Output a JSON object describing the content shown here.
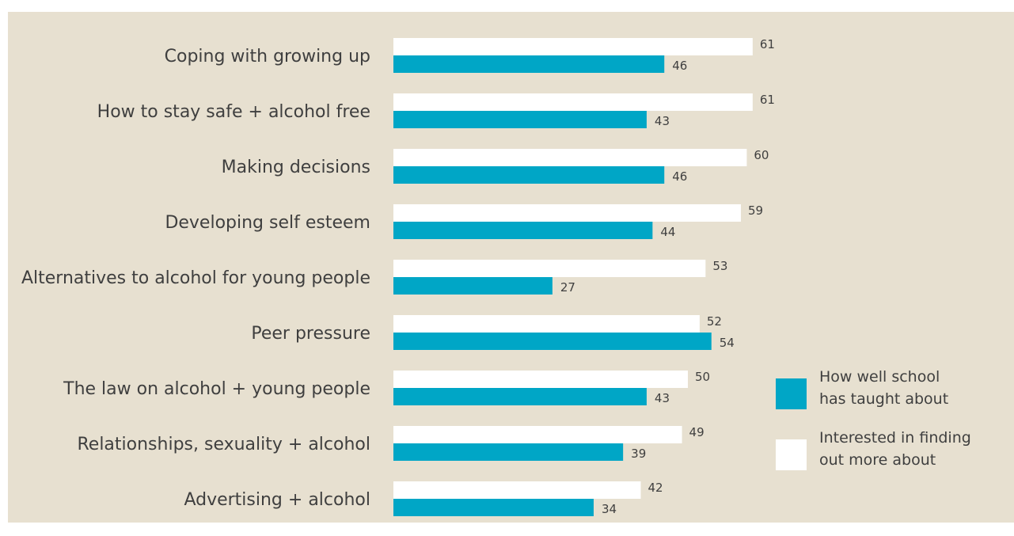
{
  "chart_data": {
    "type": "bar",
    "orientation": "horizontal",
    "categories": [
      "Coping with growing up",
      "How to stay safe + alcohol free",
      "Making decisions",
      "Developing self esteem",
      "Alternatives to alcohol for young people",
      "Peer pressure",
      "The law on alcohol + young people",
      "Relationships, sexuality + alcohol",
      "Advertising + alcohol"
    ],
    "series": [
      {
        "name": "Interested in finding out more about",
        "color": "#ffffff",
        "values": [
          61,
          61,
          60,
          59,
          53,
          52,
          50,
          49,
          42
        ]
      },
      {
        "name": "How well school has taught about",
        "color": "#00a6c6",
        "values": [
          46,
          43,
          46,
          44,
          27,
          54,
          43,
          39,
          34
        ]
      }
    ],
    "xlim": [
      0,
      61
    ],
    "grid": false,
    "legend_position": "right",
    "legend": [
      {
        "series": 1,
        "lines": [
          "How well school",
          "has taught about"
        ]
      },
      {
        "series": 0,
        "lines": [
          "Interested in finding",
          "out more about"
        ]
      }
    ]
  }
}
